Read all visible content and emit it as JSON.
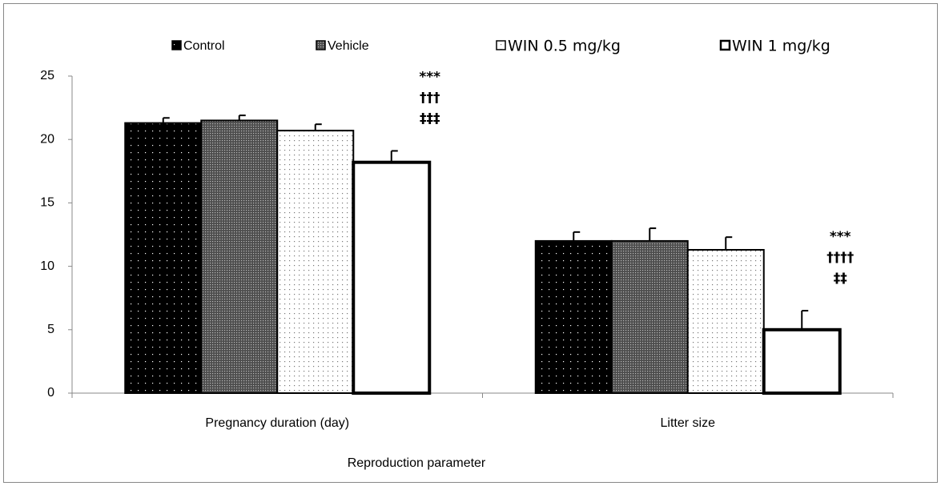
{
  "chart_data": {
    "type": "bar",
    "x_label": "Reproduction parameter",
    "categories": [
      "Pregnancy duration (day)",
      "Litter size"
    ],
    "series": [
      {
        "name": "Control",
        "color": "#000000",
        "values": [
          21.3,
          12.0
        ],
        "errors": [
          0.4,
          0.7
        ]
      },
      {
        "name": "Vehicle",
        "color": "#4d4d4d",
        "values": [
          21.5,
          12.0
        ],
        "errors": [
          0.4,
          1.0
        ]
      },
      {
        "name": "WIN 0.5 mg/kg",
        "color": "#ffffff",
        "values": [
          20.7,
          11.3
        ],
        "errors": [
          0.5,
          1.0
        ]
      },
      {
        "name": "WIN 1 mg/kg",
        "color": "#ffffff",
        "values": [
          18.2,
          5.0
        ],
        "errors": [
          0.9,
          1.5
        ]
      }
    ],
    "annotations": [
      [
        "***",
        "†††",
        "‡‡‡"
      ],
      [
        "***",
        "††††",
        "‡‡"
      ]
    ],
    "ylim": [
      0,
      25
    ],
    "yticks": [
      0,
      5,
      10,
      15,
      20,
      25
    ],
    "grid": false,
    "legend": "top"
  }
}
